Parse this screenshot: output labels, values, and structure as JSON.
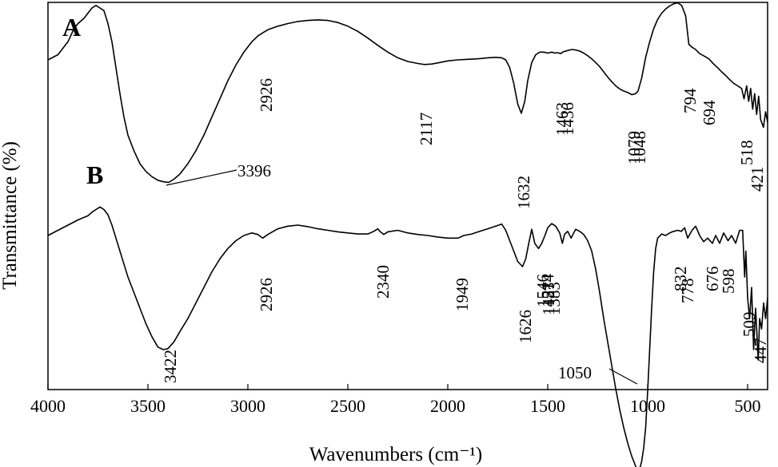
{
  "chart_data": {
    "type": "line",
    "title": "",
    "xlabel": "Wavenumbers (cm⁻¹)",
    "ylabel": "Transmittance (%)",
    "xlim": [
      4000,
      400
    ],
    "x_reversed": true,
    "x_ticks": [
      4000,
      3500,
      3000,
      2500,
      2000,
      1500,
      1000,
      500
    ],
    "grid": false,
    "legend": "none",
    "line_color": "#000000",
    "series": [
      {
        "name": "A",
        "x": [
          4000,
          3950,
          3900,
          3870,
          3850,
          3820,
          3800,
          3780,
          3760,
          3740,
          3720,
          3700,
          3680,
          3660,
          3640,
          3620,
          3600,
          3570,
          3540,
          3510,
          3480,
          3450,
          3420,
          3396,
          3370,
          3340,
          3300,
          3260,
          3220,
          3180,
          3140,
          3100,
          3060,
          3020,
          2980,
          2950,
          2926,
          2900,
          2850,
          2800,
          2750,
          2700,
          2650,
          2600,
          2550,
          2500,
          2450,
          2400,
          2350,
          2300,
          2250,
          2200,
          2150,
          2117,
          2080,
          2040,
          2000,
          1950,
          1900,
          1850,
          1800,
          1760,
          1730,
          1710,
          1690,
          1670,
          1650,
          1632,
          1615,
          1600,
          1580,
          1560,
          1540,
          1520,
          1500,
          1480,
          1463,
          1450,
          1436,
          1420,
          1400,
          1380,
          1360,
          1340,
          1320,
          1300,
          1280,
          1260,
          1240,
          1220,
          1200,
          1180,
          1160,
          1140,
          1120,
          1100,
          1079,
          1060,
          1048,
          1030,
          1010,
          990,
          970,
          950,
          930,
          910,
          890,
          870,
          850,
          830,
          810,
          794,
          780,
          760,
          740,
          720,
          694,
          670,
          650,
          630,
          610,
          590,
          570,
          550,
          530,
          518,
          505,
          495,
          485,
          475,
          465,
          455,
          445,
          435,
          421,
          410,
          400
        ],
        "y": [
          0.0,
          1.0,
          3.5,
          6.0,
          7.0,
          8.0,
          9.0,
          10.0,
          10.5,
          10.0,
          9.5,
          7.0,
          3.5,
          -1.5,
          -6.5,
          -11.0,
          -14.5,
          -17.5,
          -20.0,
          -21.5,
          -22.5,
          -23.2,
          -23.5,
          -23.6,
          -23.0,
          -22.0,
          -20.0,
          -17.5,
          -14.5,
          -11.0,
          -7.5,
          -4.0,
          -1.0,
          1.5,
          3.5,
          4.6,
          5.2,
          5.8,
          6.5,
          7.0,
          7.4,
          7.6,
          7.7,
          7.6,
          7.2,
          6.5,
          5.5,
          4.2,
          2.8,
          1.5,
          0.4,
          -0.3,
          -0.7,
          -0.9,
          -0.8,
          -0.5,
          -0.2,
          0.0,
          0.1,
          0.2,
          0.4,
          0.5,
          0.4,
          0.0,
          -1.5,
          -4.5,
          -8.5,
          -10.3,
          -8.0,
          -4.0,
          -0.5,
          1.0,
          1.5,
          1.5,
          1.3,
          1.5,
          1.3,
          1.4,
          1.2,
          1.6,
          1.8,
          2.0,
          1.9,
          1.7,
          1.3,
          0.8,
          0.2,
          -0.5,
          -1.3,
          -2.3,
          -3.3,
          -4.2,
          -5.0,
          -5.6,
          -6.0,
          -6.3,
          -6.7,
          -6.5,
          -6.0,
          -3.5,
          0.5,
          3.5,
          6.0,
          7.8,
          9.0,
          9.8,
          10.4,
          10.8,
          11.0,
          10.5,
          8.5,
          3.0,
          2.5,
          2.0,
          1.2,
          0.8,
          0.2,
          -0.8,
          -1.5,
          -2.3,
          -3.0,
          -3.8,
          -4.5,
          -5.0,
          -5.5,
          -7.5,
          -5.0,
          -8.0,
          -5.5,
          -9.5,
          -6.5,
          -10.5,
          -7.0,
          -11.5,
          -13.0,
          -10.0,
          -12.0
        ]
      },
      {
        "name": "B",
        "x": [
          4000,
          3950,
          3900,
          3850,
          3800,
          3780,
          3760,
          3740,
          3720,
          3700,
          3680,
          3660,
          3640,
          3620,
          3600,
          3570,
          3540,
          3510,
          3480,
          3450,
          3422,
          3400,
          3370,
          3340,
          3300,
          3260,
          3220,
          3180,
          3140,
          3100,
          3060,
          3020,
          2980,
          2950,
          2926,
          2900,
          2850,
          2800,
          2750,
          2700,
          2650,
          2600,
          2550,
          2500,
          2450,
          2400,
          2370,
          2350,
          2340,
          2320,
          2300,
          2250,
          2200,
          2150,
          2100,
          2050,
          2000,
          1970,
          1949,
          1920,
          1880,
          1840,
          1800,
          1760,
          1730,
          1710,
          1690,
          1670,
          1650,
          1626,
          1610,
          1595,
          1580,
          1565,
          1546,
          1530,
          1514,
          1500,
          1480,
          1460,
          1440,
          1427,
          1415,
          1400,
          1383,
          1370,
          1360,
          1340,
          1320,
          1300,
          1280,
          1260,
          1240,
          1220,
          1200,
          1180,
          1160,
          1140,
          1120,
          1100,
          1080,
          1065,
          1050,
          1040,
          1030,
          1020,
          1010,
          1000,
          990,
          980,
          970,
          960,
          950,
          930,
          910,
          890,
          870,
          850,
          832,
          815,
          800,
          778,
          760,
          740,
          720,
          700,
          676,
          660,
          640,
          620,
          598,
          580,
          560,
          540,
          525,
          515,
          509,
          500,
          490,
          480,
          470,
          460,
          447,
          440,
          430,
          420,
          410,
          400
        ],
        "y": [
          0.0,
          1.0,
          2.0,
          3.0,
          3.8,
          4.5,
          5.0,
          5.5,
          5.0,
          4.0,
          2.0,
          -0.5,
          -3.0,
          -5.5,
          -8.0,
          -11.0,
          -14.0,
          -17.0,
          -19.5,
          -21.5,
          -22.0,
          -21.8,
          -20.5,
          -18.5,
          -16.0,
          -13.0,
          -10.0,
          -7.0,
          -4.5,
          -2.5,
          -1.0,
          0.0,
          0.5,
          0.2,
          -0.5,
          0.2,
          1.3,
          1.8,
          2.0,
          1.7,
          1.3,
          1.0,
          0.7,
          0.5,
          0.3,
          0.3,
          0.8,
          1.3,
          0.8,
          0.2,
          0.7,
          1.0,
          0.5,
          0.2,
          0.0,
          -0.3,
          -0.5,
          -0.5,
          -0.5,
          0.0,
          0.3,
          0.8,
          1.3,
          1.8,
          2.2,
          1.0,
          -1.0,
          -3.0,
          -5.0,
          -6.0,
          -4.5,
          -1.5,
          1.2,
          -1.5,
          -2.5,
          -1.5,
          0.0,
          1.5,
          2.3,
          1.8,
          0.5,
          -1.5,
          0.3,
          0.8,
          -0.5,
          0.5,
          1.2,
          0.8,
          0.2,
          -1.0,
          -3.0,
          -6.5,
          -11.0,
          -16.0,
          -20.5,
          -25.0,
          -29.5,
          -33.5,
          -37.0,
          -40.0,
          -42.5,
          -44.0,
          -45.5,
          -45.0,
          -43.5,
          -41.0,
          -37.0,
          -30.0,
          -22.0,
          -14.0,
          -7.0,
          -2.5,
          -0.5,
          0.3,
          0.0,
          0.5,
          0.8,
          1.0,
          0.8,
          1.5,
          -0.5,
          1.0,
          1.8,
          0.0,
          -1.2,
          -0.5,
          -1.5,
          0.0,
          -1.5,
          0.5,
          -1.0,
          0.0,
          -1.5,
          1.0,
          1.0,
          -8.0,
          -3.0,
          -12.0,
          -16.0,
          -10.0,
          -22.0,
          -14.0,
          -24.0,
          -16.0,
          -18.0,
          -13.0,
          -16.0,
          -12.0
        ]
      }
    ],
    "series_labels": [
      "A",
      "B"
    ],
    "peak_labels_A": [
      "3396",
      "2926",
      "2117",
      "1632",
      "1463",
      "1436",
      "1079",
      "1048",
      "794",
      "694",
      "518",
      "421"
    ],
    "peak_labels_B": [
      "3422",
      "2926",
      "2340",
      "1949",
      "1626",
      "1546",
      "1514",
      "1427",
      "1383",
      "1050",
      "832",
      "778",
      "676",
      "598",
      "509",
      "447"
    ]
  }
}
